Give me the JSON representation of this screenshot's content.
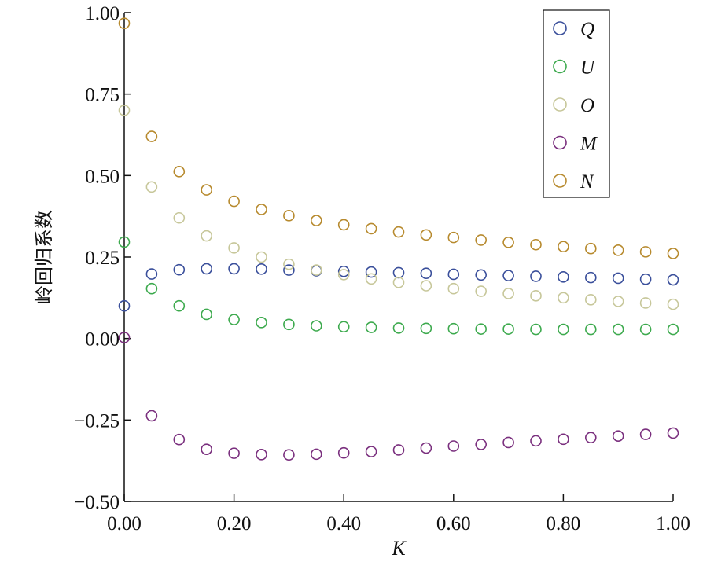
{
  "chart_data": {
    "type": "scatter",
    "title": "",
    "xlabel": "K",
    "ylabel": "岭回归系数",
    "xlim": [
      0,
      1
    ],
    "ylim": [
      -0.5,
      1.0
    ],
    "x_ticks": [
      "0.00",
      "0.20",
      "0.40",
      "0.60",
      "0.80",
      "1.00"
    ],
    "y_ticks": [
      "1.00",
      "0.75",
      "0.50",
      "0.25",
      "0.00",
      "−0.25",
      "−0.50"
    ],
    "grid": false,
    "legend_position": "top-right",
    "x": [
      0.0,
      0.05,
      0.1,
      0.15,
      0.2,
      0.25,
      0.3,
      0.35,
      0.4,
      0.45,
      0.5,
      0.55,
      0.6,
      0.65,
      0.7,
      0.75,
      0.8,
      0.85,
      0.9,
      0.95,
      1.0
    ],
    "series": [
      {
        "name": "Q",
        "color": "#3a4f9b",
        "values": [
          0.1,
          0.198,
          0.211,
          0.214,
          0.214,
          0.213,
          0.21,
          0.208,
          0.206,
          0.204,
          0.202,
          0.2,
          0.197,
          0.195,
          0.193,
          0.191,
          0.189,
          0.187,
          0.185,
          0.182,
          0.18
        ]
      },
      {
        "name": "U",
        "color": "#3daa4e",
        "values": [
          0.296,
          0.153,
          0.1,
          0.074,
          0.058,
          0.049,
          0.043,
          0.039,
          0.036,
          0.034,
          0.032,
          0.031,
          0.03,
          0.029,
          0.029,
          0.028,
          0.028,
          0.028,
          0.028,
          0.028,
          0.028
        ]
      },
      {
        "name": "O",
        "color": "#c7c79a",
        "values": [
          0.7,
          0.465,
          0.37,
          0.315,
          0.278,
          0.25,
          0.228,
          0.21,
          0.196,
          0.183,
          0.172,
          0.162,
          0.153,
          0.145,
          0.138,
          0.131,
          0.125,
          0.119,
          0.114,
          0.109,
          0.105
        ]
      },
      {
        "name": "M",
        "color": "#7a2f7e",
        "values": [
          0.003,
          -0.237,
          -0.31,
          -0.34,
          -0.352,
          -0.356,
          -0.357,
          -0.355,
          -0.351,
          -0.347,
          -0.342,
          -0.336,
          -0.33,
          -0.325,
          -0.319,
          -0.314,
          -0.309,
          -0.304,
          -0.299,
          -0.294,
          -0.29
        ]
      },
      {
        "name": "N",
        "color": "#b78a2e",
        "values": [
          0.967,
          0.62,
          0.512,
          0.456,
          0.421,
          0.396,
          0.377,
          0.362,
          0.349,
          0.337,
          0.327,
          0.318,
          0.31,
          0.302,
          0.295,
          0.288,
          0.282,
          0.276,
          0.271,
          0.266,
          0.261
        ]
      }
    ]
  }
}
